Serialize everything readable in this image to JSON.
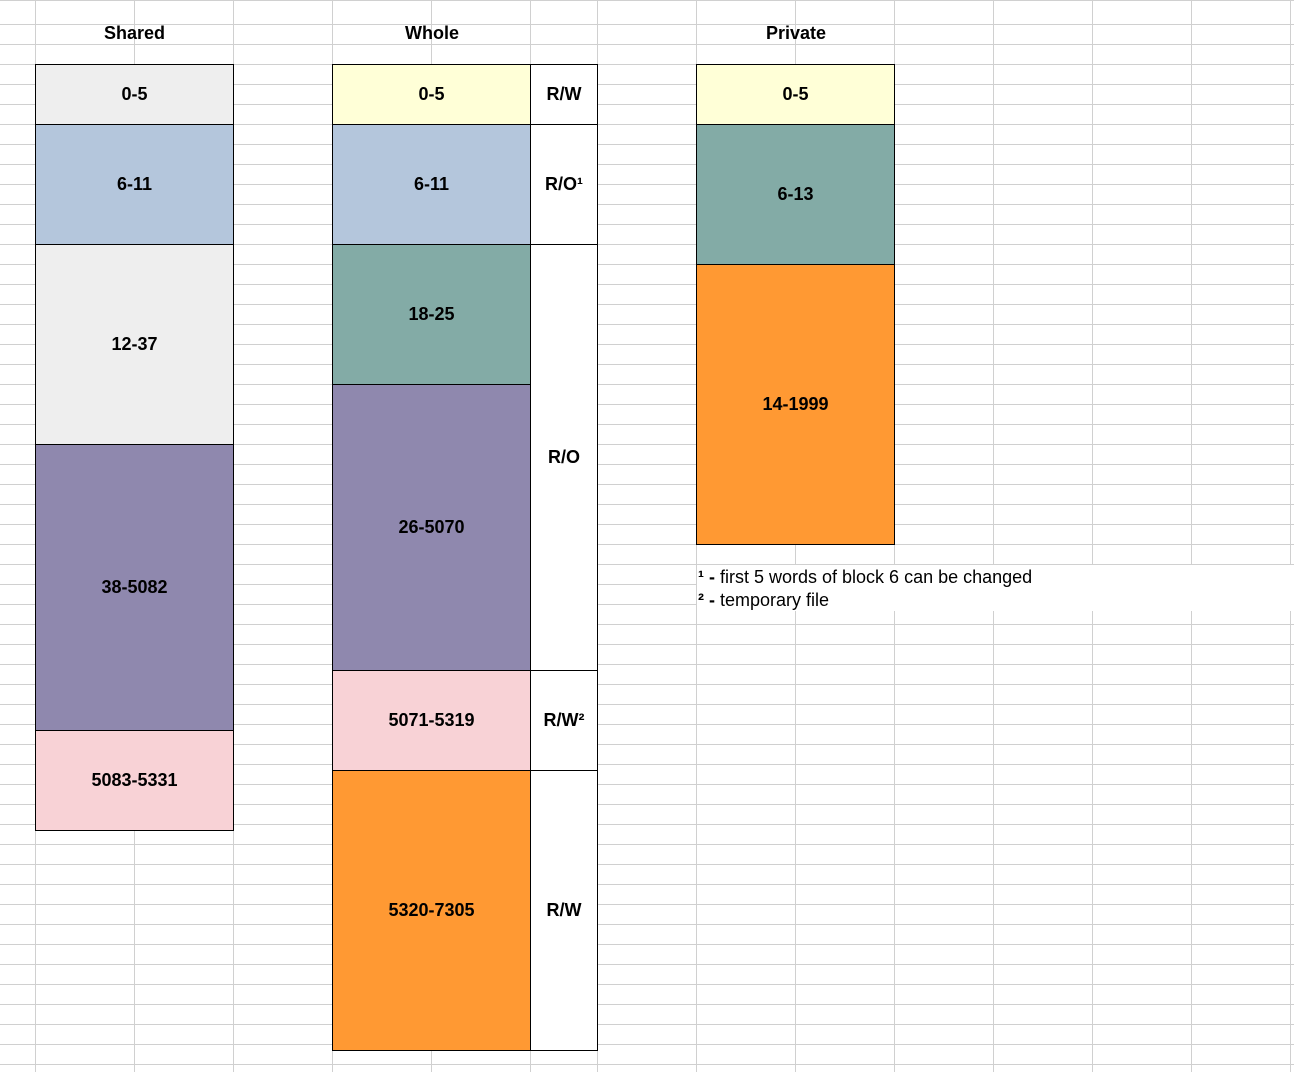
{
  "colors": {
    "gridline": "#d0d0d0",
    "grey": "#eeeeee",
    "blue": "#b4c6dc",
    "teal": "#83aba6",
    "purple": "#8f88ae",
    "pink": "#f8d2d6",
    "yellow": "#ffffd7",
    "orange": "#ff9933",
    "white": "#ffffff"
  },
  "columns": {
    "shared": {
      "title": "Shared",
      "blocks": [
        {
          "label": "0-5",
          "color": "#eeeeee"
        },
        {
          "label": "6-11",
          "color": "#b4c6dc"
        },
        {
          "label": "12-37",
          "color": "#eeeeee"
        },
        {
          "label": "38-5082",
          "color": "#8f88ae"
        },
        {
          "label": "5083-5331",
          "color": "#f8d2d6"
        }
      ]
    },
    "whole": {
      "title": "Whole",
      "blocks": [
        {
          "label": "0-5",
          "color": "#ffffd7"
        },
        {
          "label": "6-11",
          "color": "#b4c6dc"
        },
        {
          "label": "18-25",
          "color": "#83aba6"
        },
        {
          "label": "26-5070",
          "color": "#8f88ae"
        },
        {
          "label": "5071-5319",
          "color": "#f8d2d6"
        },
        {
          "label": "5320-7305",
          "color": "#ff9933"
        }
      ],
      "access": [
        {
          "label": "R/W"
        },
        {
          "label": "R/O¹"
        },
        {
          "label": "R/O"
        },
        {
          "label": "R/W²"
        },
        {
          "label": "R/W"
        }
      ]
    },
    "private": {
      "title": "Private",
      "blocks": [
        {
          "label": "0-5",
          "color": "#ffffd7"
        },
        {
          "label": "6-13",
          "color": "#83aba6"
        },
        {
          "label": "14-1999",
          "color": "#ff9933"
        }
      ]
    }
  },
  "notes": [
    {
      "mark": "¹ -",
      "text": " first 5 words of block 6 can be changed"
    },
    {
      "mark": "² -",
      "text": " temporary file"
    }
  ]
}
